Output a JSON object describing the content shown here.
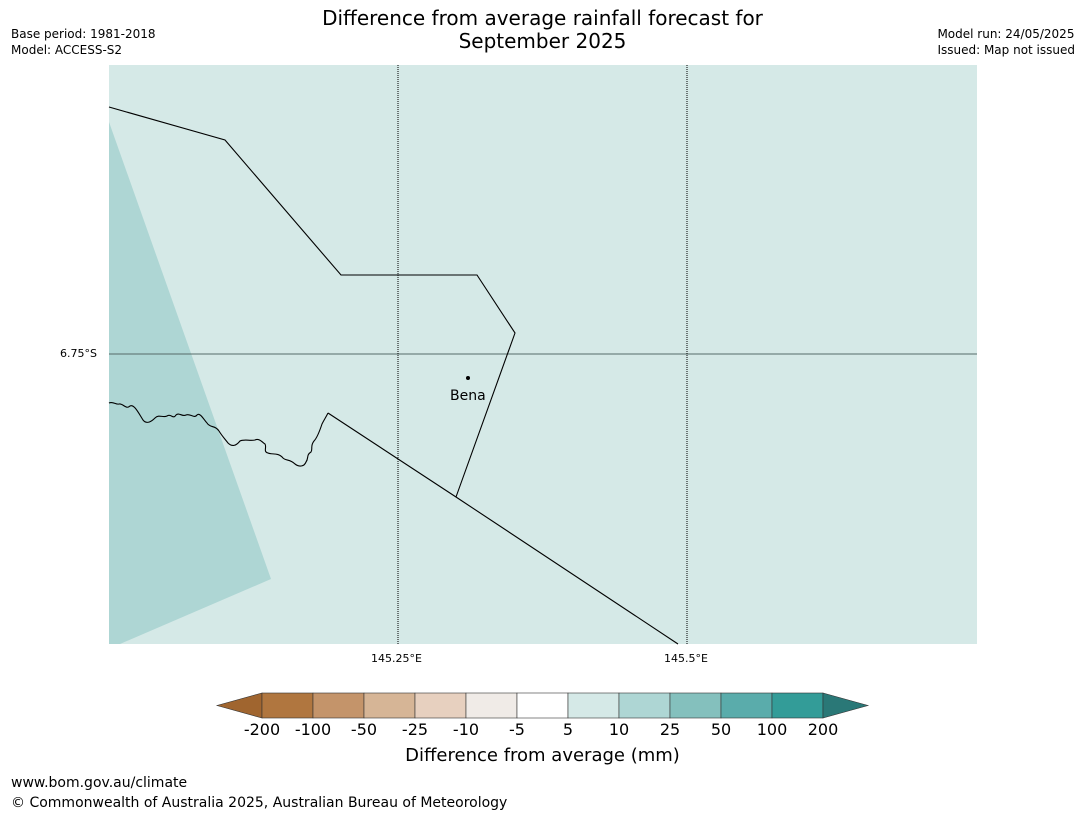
{
  "header": {
    "title_line1": "Difference from average rainfall forecast for",
    "title_line2": "September 2025",
    "base_period": "Base period: 1981-2018",
    "model": "Model: ACCESS-S2",
    "model_run": "Model run: 24/05/2025",
    "issued": "Issued: Map not issued"
  },
  "map": {
    "lat_label": "6.75°S",
    "lon_labels": [
      "145.25°E",
      "145.5°E"
    ],
    "place": "Bena",
    "colors": {
      "background": "#d5e9e7",
      "darker_region": "#aed6d4",
      "gridline": "#000000",
      "boundary": "#000000"
    }
  },
  "legend": {
    "title": "Difference from average (mm)",
    "ticks": [
      "-200",
      "-100",
      "-50",
      "-25",
      "-10",
      "-5",
      "5",
      "10",
      "25",
      "50",
      "100",
      "200"
    ],
    "colors": [
      "#a0652f",
      "#b0763f",
      "#c4946a",
      "#d6b596",
      "#e7d0bf",
      "#f0ebe7",
      "#ffffff",
      "#d5e9e7",
      "#aed6d4",
      "#84c0bd",
      "#5aacab",
      "#339c98",
      "#2a7877"
    ]
  },
  "footer": {
    "url": "www.bom.gov.au/climate",
    "copyright": "© Commonwealth of Australia 2025, Australian Bureau of Meteorology"
  }
}
